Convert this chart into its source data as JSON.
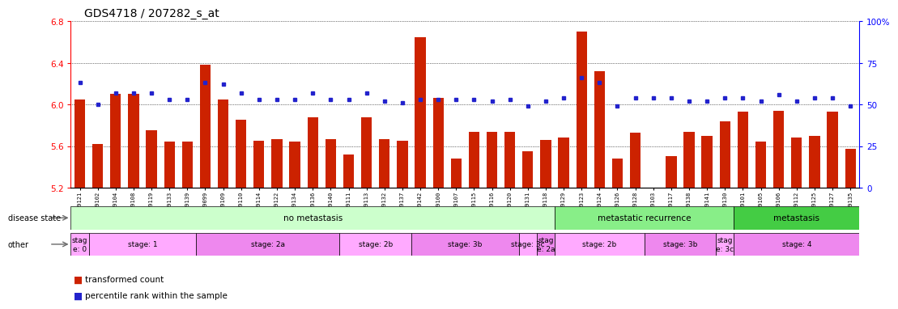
{
  "title": "GDS4718 / 207282_s_at",
  "samples": [
    "GSM549121",
    "GSM549102",
    "GSM549104",
    "GSM549108",
    "GSM549119",
    "GSM549133",
    "GSM549139",
    "GSM549099",
    "GSM549109",
    "GSM549110",
    "GSM549114",
    "GSM549122",
    "GSM549134",
    "GSM549136",
    "GSM549140",
    "GSM549111",
    "GSM549113",
    "GSM549132",
    "GSM549137",
    "GSM549142",
    "GSM549100",
    "GSM549107",
    "GSM549115",
    "GSM549116",
    "GSM549120",
    "GSM549131",
    "GSM549118",
    "GSM549129",
    "GSM549123",
    "GSM549124",
    "GSM549126",
    "GSM549128",
    "GSM549103",
    "GSM549117",
    "GSM549138",
    "GSM549141",
    "GSM549130",
    "GSM549101",
    "GSM549105",
    "GSM549106",
    "GSM549112",
    "GSM549125",
    "GSM549127",
    "GSM549135"
  ],
  "bar_values": [
    6.05,
    5.62,
    6.1,
    6.1,
    5.75,
    5.64,
    5.64,
    6.38,
    6.05,
    5.85,
    5.65,
    5.67,
    5.64,
    5.88,
    5.67,
    5.52,
    5.88,
    5.67,
    5.65,
    6.65,
    6.06,
    5.48,
    5.74,
    5.74,
    5.74,
    5.55,
    5.66,
    5.68,
    6.7,
    6.32,
    5.48,
    5.73,
    5.2,
    5.5,
    5.74,
    5.7,
    5.84,
    5.93,
    5.64,
    5.94,
    5.68,
    5.7,
    5.93,
    5.57
  ],
  "percentile_values": [
    63,
    50,
    57,
    57,
    57,
    53,
    53,
    63,
    62,
    57,
    53,
    53,
    53,
    57,
    53,
    53,
    57,
    52,
    51,
    53,
    53,
    53,
    53,
    52,
    53,
    49,
    52,
    54,
    66,
    63,
    49,
    54,
    54,
    54,
    52,
    52,
    54,
    54,
    52,
    56,
    52,
    54,
    54,
    49
  ],
  "ylim_left": [
    5.2,
    6.8
  ],
  "ylim_right": [
    0,
    100
  ],
  "yticks_left": [
    5.2,
    5.6,
    6.0,
    6.4,
    6.8
  ],
  "yticks_right": [
    0,
    25,
    50,
    75,
    100
  ],
  "bar_color": "#cc2200",
  "dot_color": "#2222cc",
  "title_fontsize": 10,
  "disease_groups": [
    {
      "label": "no metastasis",
      "start": 0,
      "end": 27,
      "color": "#ccffcc"
    },
    {
      "label": "metastatic recurrence",
      "start": 27,
      "end": 37,
      "color": "#88ee88"
    },
    {
      "label": "metastasis",
      "start": 37,
      "end": 44,
      "color": "#44cc44"
    }
  ],
  "stage_groups": [
    {
      "label": "stag\ne: 0",
      "start": 0,
      "end": 1,
      "color": "#ffaaff"
    },
    {
      "label": "stage: 1",
      "start": 1,
      "end": 7,
      "color": "#ffaaff"
    },
    {
      "label": "stage: 2a",
      "start": 7,
      "end": 15,
      "color": "#ee88ee"
    },
    {
      "label": "stage: 2b",
      "start": 15,
      "end": 19,
      "color": "#ffaaff"
    },
    {
      "label": "stage: 3b",
      "start": 19,
      "end": 25,
      "color": "#ee88ee"
    },
    {
      "label": "stage: 3c",
      "start": 25,
      "end": 26,
      "color": "#ffaaff"
    },
    {
      "label": "stag\ne: 2a",
      "start": 26,
      "end": 27,
      "color": "#ee88ee"
    },
    {
      "label": "stage: 2b",
      "start": 27,
      "end": 32,
      "color": "#ffaaff"
    },
    {
      "label": "stage: 3b",
      "start": 32,
      "end": 36,
      "color": "#ee88ee"
    },
    {
      "label": "stag\ne: 3c",
      "start": 36,
      "end": 37,
      "color": "#ffaaff"
    },
    {
      "label": "stage: 4",
      "start": 37,
      "end": 44,
      "color": "#ee88ee"
    }
  ]
}
